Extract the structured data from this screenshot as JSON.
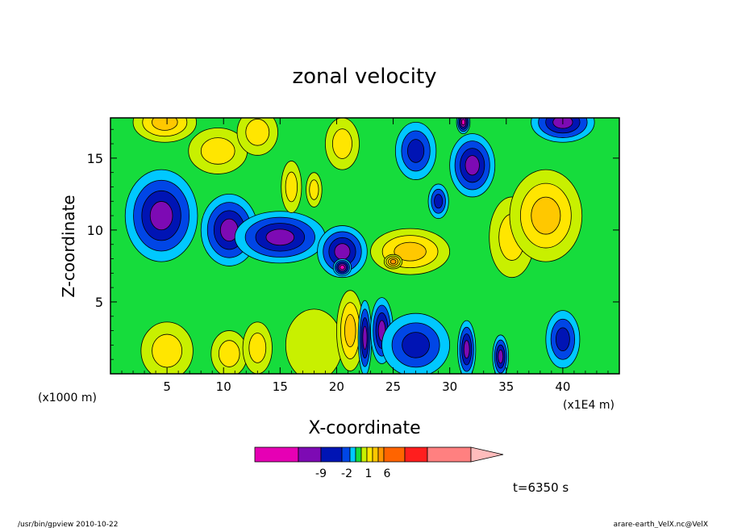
{
  "chart_data": {
    "type": "heatmap",
    "title": "zonal velocity",
    "xlabel": "X-coordinate",
    "ylabel": "Z-coordinate",
    "x_unit": "(x1E4 m)",
    "y_unit": "(x1000 m)",
    "xlim": [
      0,
      45
    ],
    "ylim": [
      0,
      17.8
    ],
    "x_ticks": [
      "5",
      "10",
      "15",
      "20",
      "25",
      "30",
      "35",
      "40"
    ],
    "y_ticks": [
      "5",
      "10",
      "15"
    ],
    "time_label": "t=6350 s",
    "colorbar": {
      "colors": [
        "#e600b4",
        "#7d0ab4",
        "#0014b4",
        "#0046e6",
        "#00c8ff",
        "#16dc3c",
        "#c8f000",
        "#ffe600",
        "#ffc800",
        "#ff9600",
        "#ff6400",
        "#ff1e1e",
        "#ff8080",
        "#ffbcbc"
      ],
      "tick_labels": [
        "-9",
        "-2",
        "1",
        "6"
      ]
    },
    "blobs": [
      {
        "x": 4.8,
        "z": 17.5,
        "level": 3,
        "rx": 2.8,
        "rz": 1.4
      },
      {
        "x": 4.5,
        "z": 11.0,
        "level": -4,
        "rx": 3.2,
        "rz": 3.2
      },
      {
        "x": 10.5,
        "z": 10.0,
        "level": -4,
        "rx": 2.5,
        "rz": 2.5
      },
      {
        "x": 9.5,
        "z": 15.5,
        "level": 2,
        "rx": 2.6,
        "rz": 1.6
      },
      {
        "x": 13.0,
        "z": 16.8,
        "level": 2,
        "rx": 1.8,
        "rz": 1.6
      },
      {
        "x": 15.0,
        "z": 9.5,
        "level": -4,
        "rx": 4.0,
        "rz": 1.8
      },
      {
        "x": 20.5,
        "z": 8.5,
        "level": -4,
        "rx": 2.2,
        "rz": 1.8
      },
      {
        "x": 20.5,
        "z": 7.4,
        "level": -5,
        "rx": 0.8,
        "rz": 0.6
      },
      {
        "x": 26.5,
        "z": 8.5,
        "level": 3,
        "rx": 3.5,
        "rz": 1.6
      },
      {
        "x": 25.0,
        "z": 7.8,
        "level": 4,
        "rx": 0.8,
        "rz": 0.5
      },
      {
        "x": 35.5,
        "z": 9.5,
        "level": 2,
        "rx": 2.0,
        "rz": 2.8
      },
      {
        "x": 38.5,
        "z": 11.0,
        "level": 3,
        "rx": 3.2,
        "rz": 3.2
      },
      {
        "x": 32.0,
        "z": 14.5,
        "level": -4,
        "rx": 2.0,
        "rz": 2.2
      },
      {
        "x": 40.0,
        "z": 17.5,
        "level": -4,
        "rx": 2.8,
        "rz": 1.4
      },
      {
        "x": 31.2,
        "z": 17.5,
        "level": -5,
        "rx": 0.6,
        "rz": 0.8
      },
      {
        "x": 20.5,
        "z": 16.0,
        "level": 2,
        "rx": 1.5,
        "rz": 1.8
      },
      {
        "x": 27.0,
        "z": 15.5,
        "level": -3,
        "rx": 1.8,
        "rz": 2.0
      },
      {
        "x": 5.0,
        "z": 1.6,
        "level": 2,
        "rx": 2.3,
        "rz": 2.0
      },
      {
        "x": 10.5,
        "z": 1.4,
        "level": 2,
        "rx": 1.6,
        "rz": 1.6
      },
      {
        "x": 13.0,
        "z": 1.8,
        "level": 2,
        "rx": 1.3,
        "rz": 1.8
      },
      {
        "x": 18.0,
        "z": 2.0,
        "level": 1,
        "rx": 2.5,
        "rz": 2.5
      },
      {
        "x": 21.2,
        "z": 3.0,
        "level": 3,
        "rx": 1.2,
        "rz": 2.8
      },
      {
        "x": 22.5,
        "z": 2.5,
        "level": -4,
        "rx": 0.6,
        "rz": 2.6
      },
      {
        "x": 24.0,
        "z": 3.0,
        "level": -4,
        "rx": 1.0,
        "rz": 2.3
      },
      {
        "x": 27.0,
        "z": 2.0,
        "level": -3,
        "rx": 3.0,
        "rz": 2.2
      },
      {
        "x": 31.5,
        "z": 1.7,
        "level": -4,
        "rx": 0.8,
        "rz": 2.0
      },
      {
        "x": 34.5,
        "z": 1.2,
        "level": -4,
        "rx": 0.7,
        "rz": 1.5
      },
      {
        "x": 40.0,
        "z": 2.4,
        "level": -3,
        "rx": 1.5,
        "rz": 2.0
      },
      {
        "x": 16.0,
        "z": 13.0,
        "level": 2,
        "rx": 0.9,
        "rz": 1.8
      },
      {
        "x": 18.0,
        "z": 12.8,
        "level": 2,
        "rx": 0.7,
        "rz": 1.2
      },
      {
        "x": 29.0,
        "z": 12.0,
        "level": -3,
        "rx": 0.9,
        "rz": 1.2
      }
    ]
  },
  "footer": {
    "left": "/usr/bin/gpview   2010-10-22",
    "right": "arare-earth_VelX.nc@VelX"
  }
}
